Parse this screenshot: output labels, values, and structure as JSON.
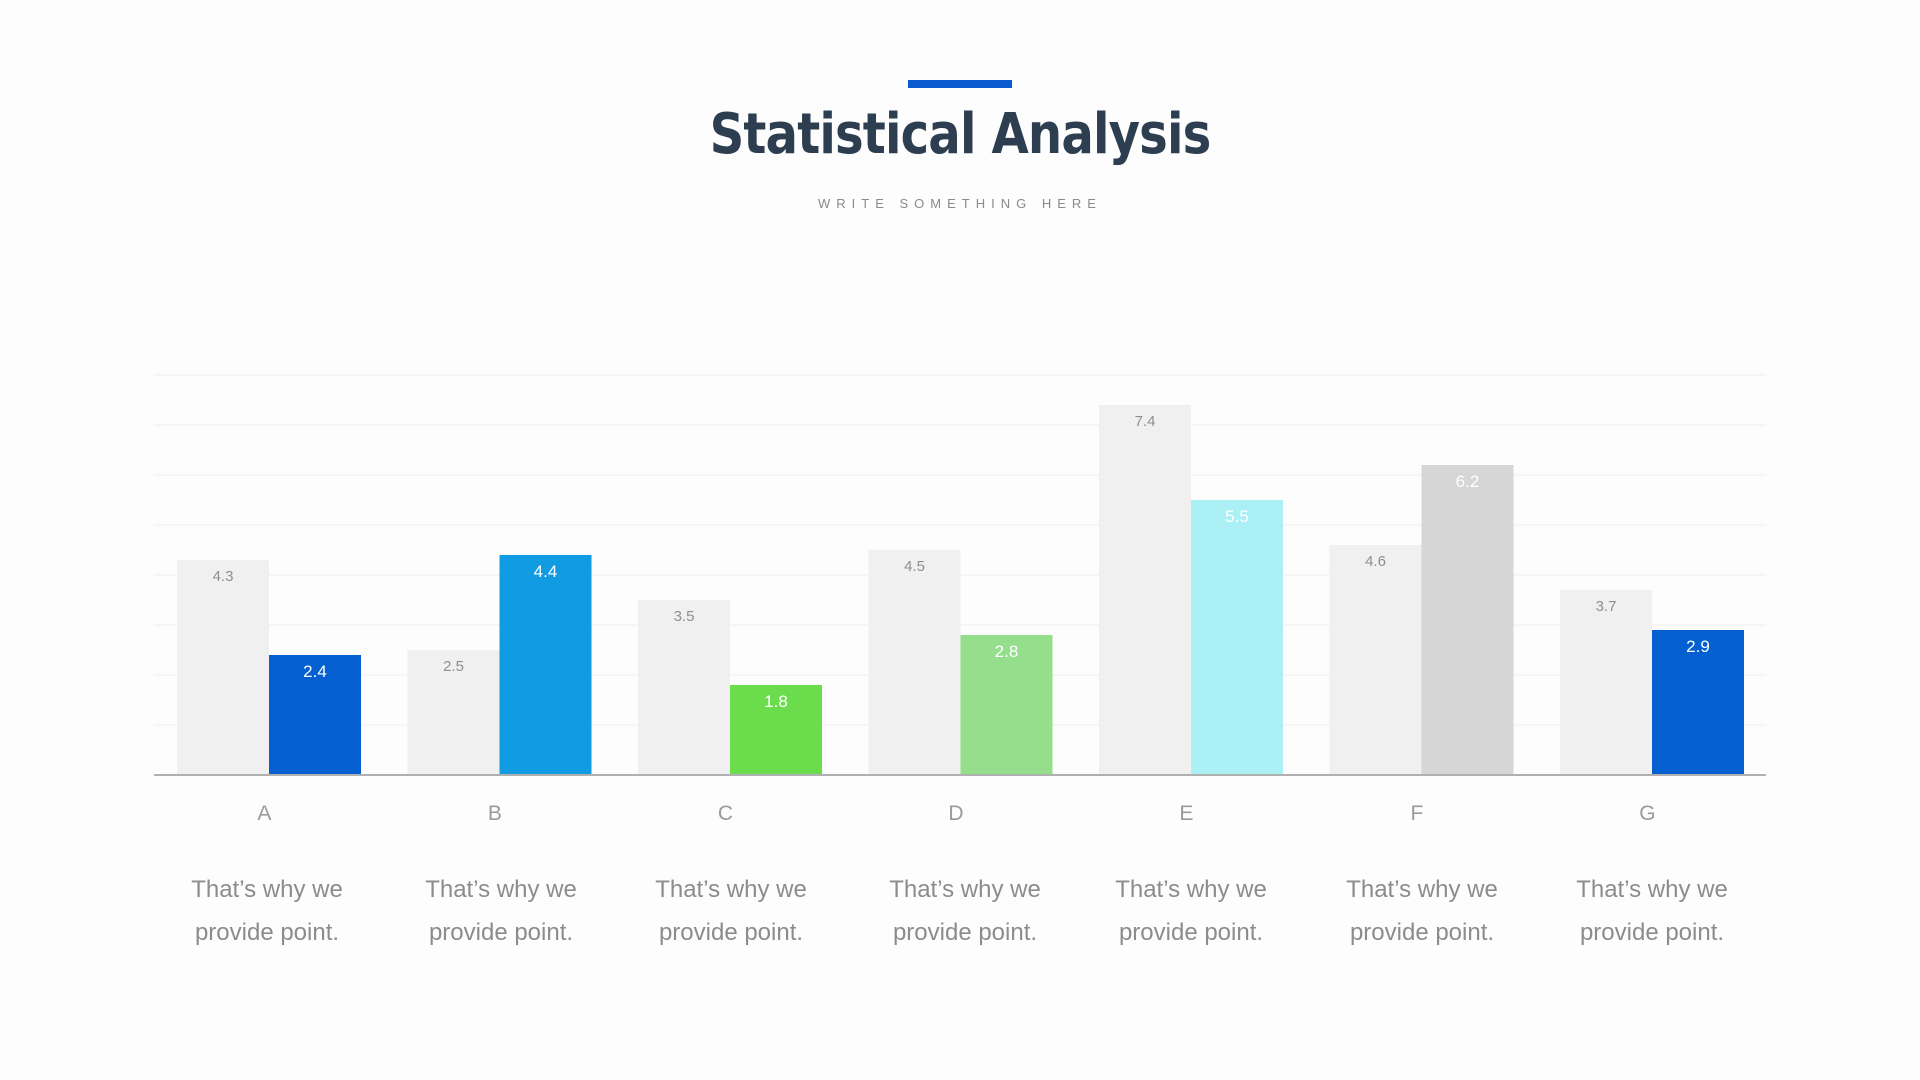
{
  "title": "Statistical Analysis",
  "subtitle": "WRITE SOMETHING HERE",
  "colors": {
    "accent": "#0b5bcf",
    "title": "#2c3e50",
    "background_bar": "#f0f0f0",
    "axis": "#b0b0b0",
    "gridline": "#eeeeee",
    "category_label": "#9a9a9a"
  },
  "chart_data": {
    "type": "bar",
    "categories": [
      "A",
      "B",
      "C",
      "D",
      "E",
      "F",
      "G"
    ],
    "series": [
      {
        "values": [
          4.3,
          2.5,
          3.5,
          4.5,
          7.4,
          4.6,
          3.7
        ]
      },
      {
        "values": [
          2.4,
          4.4,
          1.8,
          2.8,
          5.5,
          6.2,
          2.9
        ]
      }
    ],
    "highlight_colors": [
      "#0460d1",
      "#109be2",
      "#6bdc4b",
      "#95de8b",
      "#aaf0f5",
      "#d6d6d6",
      "#0460d1"
    ],
    "ylim": [
      0,
      8
    ],
    "grid": true,
    "legend": "none"
  },
  "descriptions": [
    {
      "line1": "That’s why we",
      "line2": "provide point."
    },
    {
      "line1": "That’s why we",
      "line2": "provide point."
    },
    {
      "line1": "That’s why we",
      "line2": "provide point."
    },
    {
      "line1": "That’s why we",
      "line2": "provide point."
    },
    {
      "line1": "That’s why we",
      "line2": "provide point."
    },
    {
      "line1": "That’s why we",
      "line2": "provide point."
    },
    {
      "line1": "That’s why we",
      "line2": "provide point."
    }
  ]
}
